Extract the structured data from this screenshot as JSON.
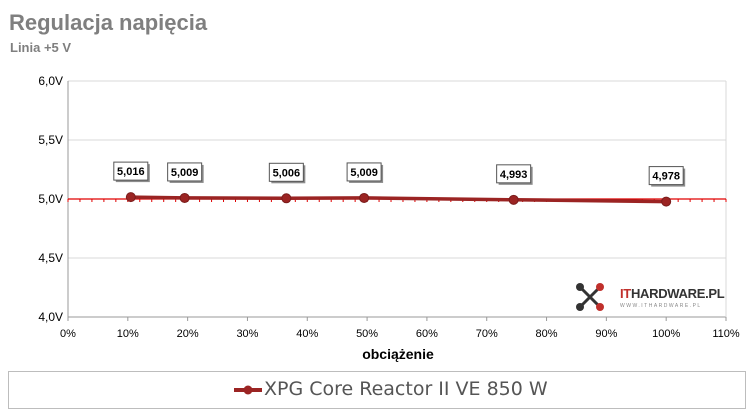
{
  "title": "Regulacja napięcia",
  "subtitle": "Linia +5 V",
  "logo": {
    "prefix": "IT",
    "main": "HARDWARE.PL",
    "sub": "WWW.ITHARDWARE.PL"
  },
  "colors": {
    "series": "#9b2423",
    "reference": "#e00000",
    "grid": "#d9d9d9",
    "text": "#7f7f7f"
  },
  "chart_data": {
    "type": "line",
    "title": "Regulacja napięcia",
    "subtitle": "Linia +5 V",
    "xlabel": "obciążenie",
    "ylabel": "",
    "xlim": [
      0,
      110
    ],
    "ylim": [
      4.0,
      6.0
    ],
    "x_ticks": [
      "0%",
      "10%",
      "20%",
      "30%",
      "40%",
      "50%",
      "60%",
      "70%",
      "80%",
      "90%",
      "100%",
      "110%"
    ],
    "y_ticks": [
      "4,0V",
      "4,5V",
      "5,0V",
      "5,5V",
      "6,0V"
    ],
    "grid": "horizontal",
    "reference_line": 5.0,
    "legend": "bottom",
    "series": [
      {
        "name": "XPG Core Reactor II VE 850 W",
        "points": [
          {
            "x": 10.5,
            "y": 5.016,
            "label": "5,016"
          },
          {
            "x": 19.5,
            "y": 5.009,
            "label": "5,009"
          },
          {
            "x": 36.5,
            "y": 5.006,
            "label": "5,006"
          },
          {
            "x": 49.5,
            "y": 5.009,
            "label": "5,009"
          },
          {
            "x": 74.5,
            "y": 4.993,
            "label": "4,993"
          },
          {
            "x": 100,
            "y": 4.978,
            "label": "4,978"
          }
        ]
      }
    ]
  }
}
